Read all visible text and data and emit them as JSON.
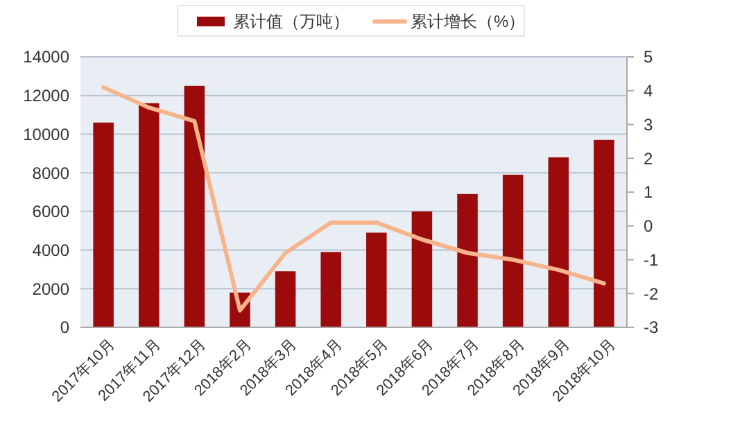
{
  "chart_data": {
    "type": "bar",
    "categories": [
      "2017年10月",
      "2017年11月",
      "2017年12月",
      "2018年2月",
      "2018年3月",
      "2018年4月",
      "2018年5月",
      "2018年6月",
      "2018年7月",
      "2018年8月",
      "2018年9月",
      "2018年10月"
    ],
    "series": [
      {
        "name": "累计值（万吨）",
        "color": "#9c0b0b",
        "values": [
          10600,
          11600,
          12500,
          1800,
          2900,
          3900,
          4900,
          6000,
          6900,
          7900,
          8800,
          9700
        ]
      },
      {
        "name": "累计增长（%）",
        "type": "line",
        "axis": "y2",
        "color": "#f5b48c",
        "values": [
          4.1,
          3.5,
          3.1,
          -2.5,
          -0.8,
          0.1,
          0.1,
          -0.4,
          -0.8,
          -1.0,
          -1.3,
          -1.7
        ]
      }
    ],
    "ylim": [
      0,
      14000
    ],
    "yticks": [
      0,
      2000,
      4000,
      6000,
      8000,
      10000,
      12000,
      14000
    ],
    "y2lim": [
      -3,
      5
    ],
    "y2ticks": [
      -3,
      -2,
      -1,
      0,
      1,
      2,
      3,
      4,
      5
    ],
    "grid": "y",
    "legend": "top",
    "marker": "none",
    "line_style": "solid"
  }
}
